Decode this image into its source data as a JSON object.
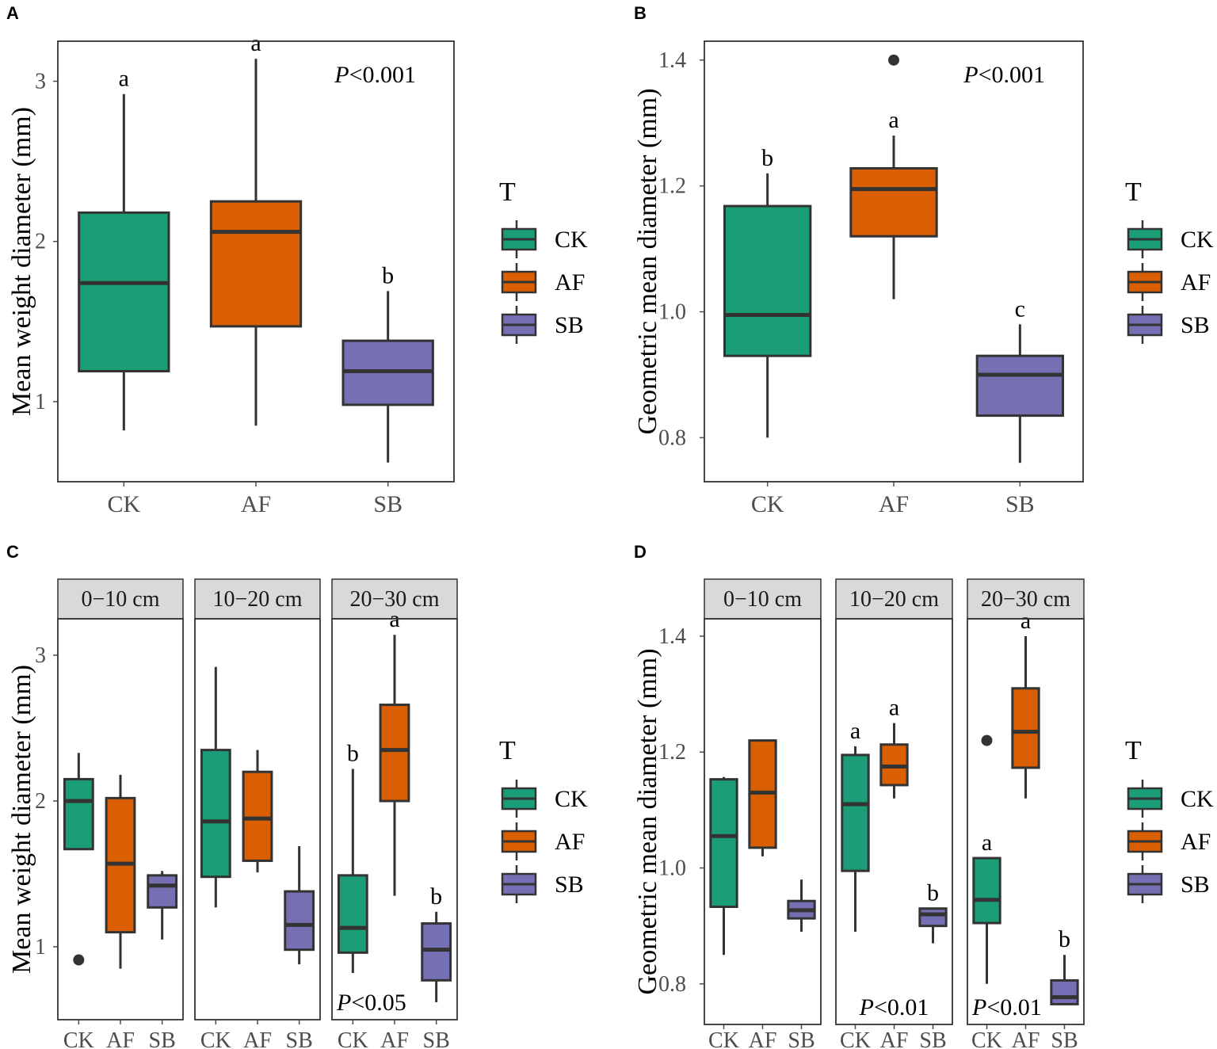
{
  "colors": {
    "CK": "#1b9e77",
    "AF": "#d95f02",
    "SB": "#7570b3",
    "line": "#333333",
    "strip": "#d9d9d9",
    "tick": "#4d4d4d"
  },
  "legend": {
    "title": "T",
    "items": [
      "CK",
      "AF",
      "SB"
    ]
  },
  "chart_data": [
    {
      "panel": "A",
      "type": "boxplot",
      "ylabel": "Mean weight diameter (mm)",
      "ylim": [
        0.5,
        3.25
      ],
      "yticks": [
        1,
        2,
        3
      ],
      "ytick_labels": [
        "1",
        "2",
        "3"
      ],
      "facets": [
        {
          "strip": "",
          "categories": [
            "CK",
            "AF",
            "SB"
          ],
          "boxes": [
            {
              "group": "CK",
              "whisker_low": 0.82,
              "q1": 1.19,
              "median": 1.74,
              "q3": 2.18,
              "whisker_high": 2.92,
              "outliers": [],
              "letter": "a"
            },
            {
              "group": "AF",
              "whisker_low": 0.85,
              "q1": 1.47,
              "median": 2.06,
              "q3": 2.25,
              "whisker_high": 3.14,
              "outliers": [],
              "letter": "a"
            },
            {
              "group": "SB",
              "whisker_low": 0.62,
              "q1": 0.98,
              "median": 1.19,
              "q3": 1.38,
              "whisker_high": 1.69,
              "outliers": [],
              "letter": "b"
            }
          ],
          "p_italic": "P",
          "p_rest": "<0.001",
          "p_place": "top-right"
        }
      ]
    },
    {
      "panel": "B",
      "type": "boxplot",
      "ylabel": "Geometric mean diameter (mm)",
      "ylim": [
        0.73,
        1.43
      ],
      "yticks": [
        0.8,
        1.0,
        1.2,
        1.4
      ],
      "ytick_labels": [
        "0.8",
        "1.0",
        "1.2",
        "1.4"
      ],
      "facets": [
        {
          "strip": "",
          "categories": [
            "CK",
            "AF",
            "SB"
          ],
          "boxes": [
            {
              "group": "CK",
              "whisker_low": 0.8,
              "q1": 0.93,
              "median": 0.995,
              "q3": 1.168,
              "whisker_high": 1.22,
              "outliers": [],
              "letter": "b"
            },
            {
              "group": "AF",
              "whisker_low": 1.02,
              "q1": 1.12,
              "median": 1.195,
              "q3": 1.228,
              "whisker_high": 1.28,
              "outliers": [
                1.4
              ],
              "letter": "a"
            },
            {
              "group": "SB",
              "whisker_low": 0.76,
              "q1": 0.835,
              "median": 0.9,
              "q3": 0.93,
              "whisker_high": 0.98,
              "outliers": [],
              "letter": "c"
            }
          ],
          "p_italic": "P",
          "p_rest": "<0.001",
          "p_place": "top-right"
        }
      ]
    },
    {
      "panel": "C",
      "type": "boxplot",
      "ylabel": "Mean weight diameter (mm)",
      "ylim": [
        0.5,
        3.25
      ],
      "yticks": [
        1,
        2,
        3
      ],
      "ytick_labels": [
        "1",
        "2",
        "3"
      ],
      "facets": [
        {
          "strip": "0−10 cm",
          "categories": [
            "CK",
            "AF",
            "SB"
          ],
          "boxes": [
            {
              "group": "CK",
              "whisker_low": 1.67,
              "q1": 1.67,
              "median": 2.0,
              "q3": 2.15,
              "whisker_high": 2.33,
              "outliers": [
                0.91
              ],
              "letter": ""
            },
            {
              "group": "AF",
              "whisker_low": 0.85,
              "q1": 1.1,
              "median": 1.57,
              "q3": 2.02,
              "whisker_high": 2.18,
              "outliers": [],
              "letter": ""
            },
            {
              "group": "SB",
              "whisker_low": 1.05,
              "q1": 1.27,
              "median": 1.42,
              "q3": 1.49,
              "whisker_high": 1.52,
              "outliers": [],
              "letter": ""
            }
          ],
          "p_italic": "",
          "p_rest": "",
          "p_place": "bottom-left"
        },
        {
          "strip": "10−20 cm",
          "categories": [
            "CK",
            "AF",
            "SB"
          ],
          "boxes": [
            {
              "group": "CK",
              "whisker_low": 1.27,
              "q1": 1.48,
              "median": 1.86,
              "q3": 2.35,
              "whisker_high": 2.92,
              "outliers": [],
              "letter": ""
            },
            {
              "group": "AF",
              "whisker_low": 1.51,
              "q1": 1.59,
              "median": 1.88,
              "q3": 2.2,
              "whisker_high": 2.35,
              "outliers": [],
              "letter": ""
            },
            {
              "group": "SB",
              "whisker_low": 0.88,
              "q1": 0.98,
              "median": 1.15,
              "q3": 1.38,
              "whisker_high": 1.69,
              "outliers": [],
              "letter": ""
            }
          ],
          "p_italic": "",
          "p_rest": "",
          "p_place": "bottom-left"
        },
        {
          "strip": "20−30 cm",
          "categories": [
            "CK",
            "AF",
            "SB"
          ],
          "boxes": [
            {
              "group": "CK",
              "whisker_low": 0.82,
              "q1": 0.96,
              "median": 1.13,
              "q3": 1.49,
              "whisker_high": 2.22,
              "outliers": [],
              "letter": "b"
            },
            {
              "group": "AF",
              "whisker_low": 1.35,
              "q1": 2.0,
              "median": 2.35,
              "q3": 2.66,
              "whisker_high": 3.14,
              "outliers": [],
              "letter": "a"
            },
            {
              "group": "SB",
              "whisker_low": 0.62,
              "q1": 0.77,
              "median": 0.98,
              "q3": 1.16,
              "whisker_high": 1.24,
              "outliers": [],
              "letter": "b"
            }
          ],
          "p_italic": "P",
          "p_rest": "<0.05",
          "p_place": "bottom-left"
        }
      ]
    },
    {
      "panel": "D",
      "type": "boxplot",
      "ylabel": "Geometric mean diameter (mm)",
      "ylim": [
        0.73,
        1.43
      ],
      "yticks": [
        0.8,
        1.0,
        1.2,
        1.4
      ],
      "ytick_labels": [
        "0.8",
        "1.0",
        "1.2",
        "1.4"
      ],
      "facets": [
        {
          "strip": "0−10 cm",
          "categories": [
            "CK",
            "AF",
            "SB"
          ],
          "boxes": [
            {
              "group": "CK",
              "whisker_low": 0.85,
              "q1": 0.933,
              "median": 1.055,
              "q3": 1.153,
              "whisker_high": 1.157,
              "outliers": [],
              "letter": ""
            },
            {
              "group": "AF",
              "whisker_low": 1.02,
              "q1": 1.035,
              "median": 1.13,
              "q3": 1.22,
              "whisker_high": 1.22,
              "outliers": [],
              "letter": ""
            },
            {
              "group": "SB",
              "whisker_low": 0.89,
              "q1": 0.913,
              "median": 0.927,
              "q3": 0.943,
              "whisker_high": 0.98,
              "outliers": [],
              "letter": ""
            }
          ],
          "p_italic": "",
          "p_rest": "",
          "p_place": "bottom-left"
        },
        {
          "strip": "10−20 cm",
          "categories": [
            "CK",
            "AF",
            "SB"
          ],
          "boxes": [
            {
              "group": "CK",
              "whisker_low": 0.89,
              "q1": 0.995,
              "median": 1.11,
              "q3": 1.195,
              "whisker_high": 1.21,
              "outliers": [],
              "letter": "a"
            },
            {
              "group": "AF",
              "whisker_low": 1.12,
              "q1": 1.143,
              "median": 1.175,
              "q3": 1.213,
              "whisker_high": 1.25,
              "outliers": [],
              "letter": "a"
            },
            {
              "group": "SB",
              "whisker_low": 0.87,
              "q1": 0.9,
              "median": 0.92,
              "q3": 0.93,
              "whisker_high": 0.93,
              "outliers": [],
              "letter": "b"
            }
          ],
          "p_italic": "P",
          "p_rest": "<0.01",
          "p_place": "bottom-center"
        },
        {
          "strip": "20−30 cm",
          "categories": [
            "CK",
            "AF",
            "SB"
          ],
          "boxes": [
            {
              "group": "CK",
              "whisker_low": 0.8,
              "q1": 0.905,
              "median": 0.945,
              "q3": 1.017,
              "whisker_high": 1.017,
              "outliers": [
                1.22
              ],
              "letter": "a"
            },
            {
              "group": "AF",
              "whisker_low": 1.12,
              "q1": 1.173,
              "median": 1.235,
              "q3": 1.31,
              "whisker_high": 1.4,
              "outliers": [],
              "letter": "a"
            },
            {
              "group": "SB",
              "whisker_low": 0.765,
              "q1": 0.765,
              "median": 0.777,
              "q3": 0.806,
              "whisker_high": 0.85,
              "outliers": [],
              "letter": "b"
            }
          ],
          "p_italic": "P",
          "p_rest": "<0.01",
          "p_place": "bottom-left"
        }
      ]
    }
  ]
}
